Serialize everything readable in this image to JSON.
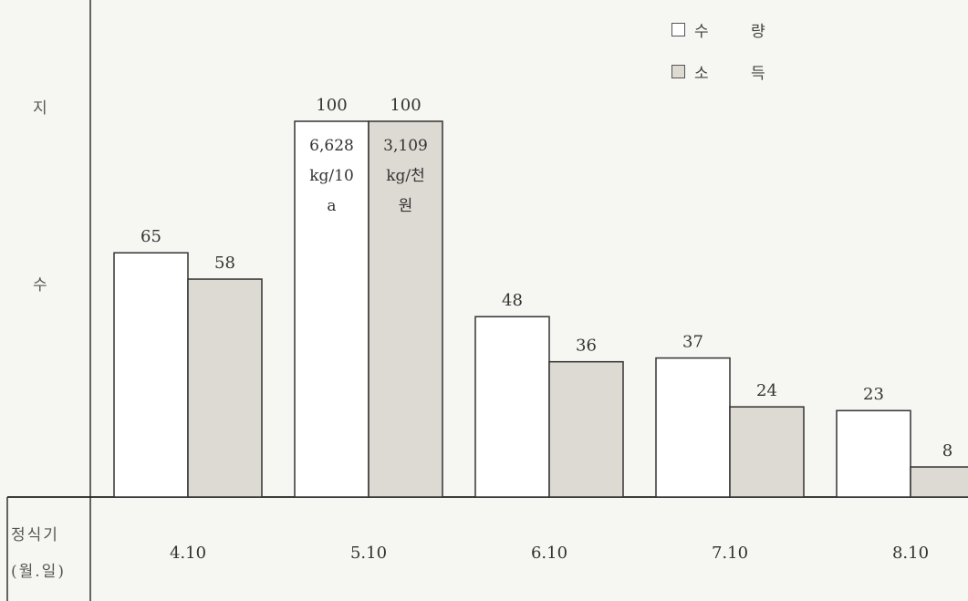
{
  "header_fragment": "... ...  ...",
  "y_axis_label": [
    "지",
    "수"
  ],
  "x_axis_header": [
    "정식기",
    "(월.일)"
  ],
  "legend": [
    {
      "label_a": "수",
      "label_b": "량",
      "color": "#ffffff"
    },
    {
      "label_a": "소",
      "label_b": "득",
      "color": "#ddd9d3"
    }
  ],
  "chart_data": {
    "type": "bar",
    "categories": [
      "4.10",
      "5.10",
      "6.10",
      "7.10",
      "8.10"
    ],
    "series": [
      {
        "name": "수 량",
        "values": [
          65,
          100,
          48,
          37,
          23
        ],
        "color": "#ffffff"
      },
      {
        "name": "소 득",
        "values": [
          58,
          100,
          36,
          24,
          8
        ],
        "color": "#ddd9d3"
      }
    ],
    "ylim": [
      0,
      100
    ],
    "grid": false,
    "legend_position": "top-right",
    "annotations": [
      {
        "category": "5.10",
        "series": "수 량",
        "lines": [
          "6,628",
          "kg/10",
          "a"
        ]
      },
      {
        "category": "5.10",
        "series": "소 득",
        "lines": [
          "3,109",
          "kg/천",
          "원"
        ]
      }
    ]
  }
}
